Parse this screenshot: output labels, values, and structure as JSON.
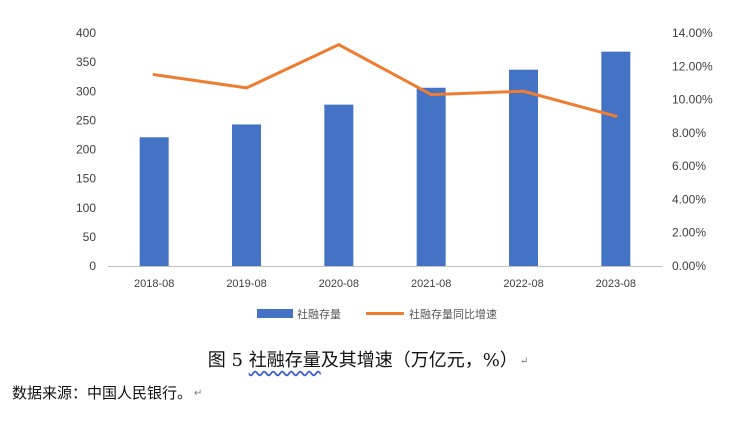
{
  "chart_data": {
    "type": "bar+line",
    "categories": [
      "2018-08",
      "2019-08",
      "2020-08",
      "2021-08",
      "2022-08",
      "2023-08"
    ],
    "series": [
      {
        "name": "社融存量",
        "type": "bar",
        "axis": "left",
        "color": "#4472C4",
        "values": [
          221,
          243,
          277,
          306,
          337,
          368
        ]
      },
      {
        "name": "社融存量同比增速",
        "type": "line",
        "axis": "right",
        "color": "#ED7D31",
        "values": [
          11.5,
          10.7,
          13.3,
          10.3,
          10.5,
          9.0
        ]
      }
    ],
    "y_left": {
      "ylim": [
        0,
        400
      ],
      "ticks": [
        "0",
        "50",
        "100",
        "150",
        "200",
        "250",
        "300",
        "350",
        "400"
      ]
    },
    "y_right": {
      "ylim": [
        0,
        14
      ],
      "ticks": [
        "0.00%",
        "2.00%",
        "4.00%",
        "6.00%",
        "8.00%",
        "10.00%",
        "12.00%",
        "14.00%"
      ]
    },
    "grid": false,
    "legend_position": "bottom"
  },
  "caption": {
    "prefix": "图 5 ",
    "underlined": "社融存量",
    "rest": "及其增速（万亿元，%）",
    "return_mark": "↵"
  },
  "source": {
    "text": "数据来源：中国人民银行。",
    "return_mark": "↵"
  }
}
